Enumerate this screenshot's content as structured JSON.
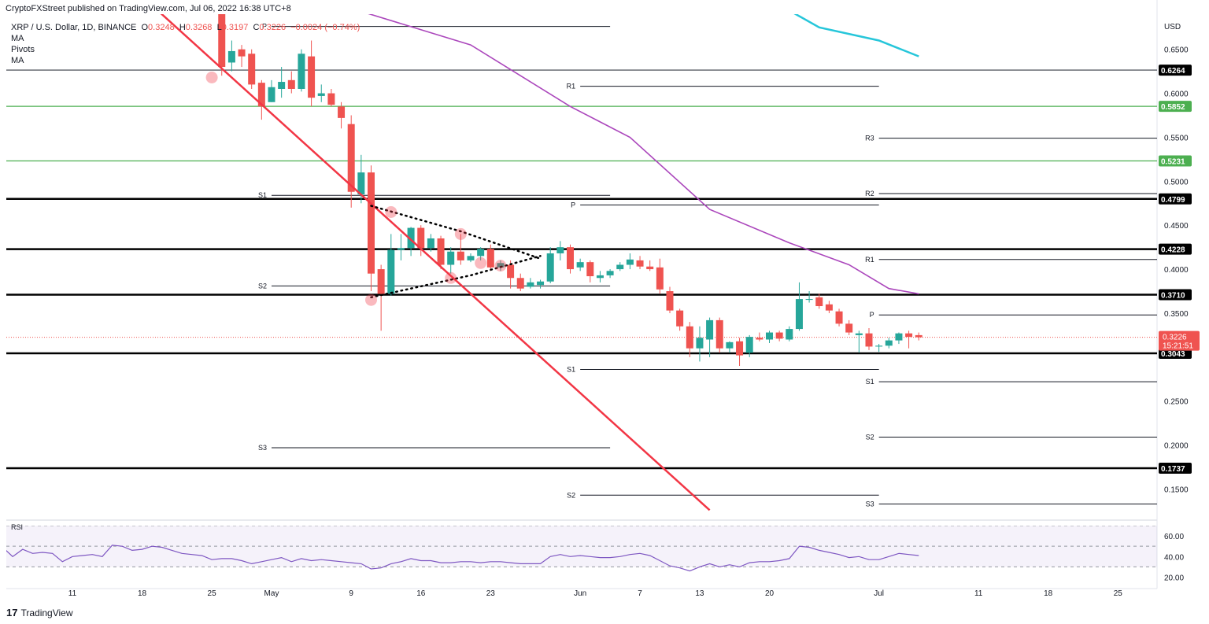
{
  "header": {
    "published": "CryptoFXStreet published on TradingView.com, Jul 06, 2022 16:38 UTC+8",
    "symbol": "XRP / U.S. Dollar, 1D, BINANCE",
    "open_label": "O",
    "open": "0.3248",
    "high_label": "H",
    "high": "0.3268",
    "low_label": "L",
    "low": "0.3197",
    "close_label": "C",
    "close": "0.3226",
    "change": "−0.0024 (−0.74%)",
    "indicators": [
      "MA",
      "Pivots",
      "MA"
    ]
  },
  "footer": {
    "brand": "TradingView"
  },
  "colors": {
    "up": "#26a69a",
    "down": "#ef5350",
    "ma_fast": "#ab47bc",
    "ma_slow": "#26c6da",
    "trendline": "#f23645",
    "support_green": "#4caf50",
    "rsi": "#7e57c2"
  },
  "chart_data": {
    "type": "candlestick",
    "currency": "USD",
    "ylim": [
      0.12,
      0.69
    ],
    "y_ticks": [
      "0.6500",
      "0.6000",
      "0.5500",
      "0.5000",
      "0.4500",
      "0.4000",
      "0.3500",
      "0.2500",
      "0.2000",
      "0.1500"
    ],
    "x_ticks": [
      {
        "label": "11",
        "day": -20
      },
      {
        "label": "18",
        "day": -13
      },
      {
        "label": "25",
        "day": -6
      },
      {
        "label": "May",
        "day": 0
      },
      {
        "label": "9",
        "day": 8
      },
      {
        "label": "16",
        "day": 15
      },
      {
        "label": "23",
        "day": 22
      },
      {
        "label": "Jun",
        "day": 31
      },
      {
        "label": "7",
        "day": 37
      },
      {
        "label": "13",
        "day": 43
      },
      {
        "label": "20",
        "day": 50
      },
      {
        "label": "Jul",
        "day": 61
      },
      {
        "label": "11",
        "day": 71
      },
      {
        "label": "18",
        "day": 78
      },
      {
        "label": "25",
        "day": 85
      }
    ],
    "candles": [
      {
        "d": -5,
        "o": 0.7,
        "h": 0.72,
        "l": 0.62,
        "c": 0.63
      },
      {
        "d": -4,
        "o": 0.635,
        "h": 0.66,
        "l": 0.625,
        "c": 0.648
      },
      {
        "d": -3,
        "o": 0.65,
        "h": 0.655,
        "l": 0.63,
        "c": 0.642
      },
      {
        "d": -2,
        "o": 0.645,
        "h": 0.65,
        "l": 0.605,
        "c": 0.61
      },
      {
        "d": -1,
        "o": 0.612,
        "h": 0.615,
        "l": 0.57,
        "c": 0.585
      },
      {
        "d": 0,
        "o": 0.59,
        "h": 0.615,
        "l": 0.59,
        "c": 0.607
      },
      {
        "d": 1,
        "o": 0.605,
        "h": 0.63,
        "l": 0.595,
        "c": 0.613
      },
      {
        "d": 2,
        "o": 0.615,
        "h": 0.625,
        "l": 0.6,
        "c": 0.605
      },
      {
        "d": 3,
        "o": 0.605,
        "h": 0.65,
        "l": 0.602,
        "c": 0.645
      },
      {
        "d": 4,
        "o": 0.642,
        "h": 0.66,
        "l": 0.585,
        "c": 0.595
      },
      {
        "d": 5,
        "o": 0.597,
        "h": 0.61,
        "l": 0.59,
        "c": 0.6
      },
      {
        "d": 6,
        "o": 0.6,
        "h": 0.605,
        "l": 0.585,
        "c": 0.587
      },
      {
        "d": 7,
        "o": 0.585,
        "h": 0.59,
        "l": 0.56,
        "c": 0.572
      },
      {
        "d": 8,
        "o": 0.565,
        "h": 0.575,
        "l": 0.47,
        "c": 0.488
      },
      {
        "d": 9,
        "o": 0.485,
        "h": 0.53,
        "l": 0.475,
        "c": 0.51
      },
      {
        "d": 10,
        "o": 0.51,
        "h": 0.518,
        "l": 0.375,
        "c": 0.395
      },
      {
        "d": 11,
        "o": 0.4,
        "h": 0.405,
        "l": 0.33,
        "c": 0.372
      },
      {
        "d": 12,
        "o": 0.372,
        "h": 0.44,
        "l": 0.37,
        "c": 0.422
      },
      {
        "d": 13,
        "o": 0.422,
        "h": 0.44,
        "l": 0.41,
        "c": 0.424
      },
      {
        "d": 14,
        "o": 0.424,
        "h": 0.448,
        "l": 0.415,
        "c": 0.447
      },
      {
        "d": 15,
        "o": 0.447,
        "h": 0.45,
        "l": 0.415,
        "c": 0.424
      },
      {
        "d": 16,
        "o": 0.424,
        "h": 0.44,
        "l": 0.42,
        "c": 0.435
      },
      {
        "d": 17,
        "o": 0.435,
        "h": 0.438,
        "l": 0.4,
        "c": 0.405
      },
      {
        "d": 18,
        "o": 0.405,
        "h": 0.425,
        "l": 0.395,
        "c": 0.42
      },
      {
        "d": 19,
        "o": 0.42,
        "h": 0.44,
        "l": 0.405,
        "c": 0.41
      },
      {
        "d": 20,
        "o": 0.41,
        "h": 0.418,
        "l": 0.408,
        "c": 0.415
      },
      {
        "d": 21,
        "o": 0.415,
        "h": 0.425,
        "l": 0.41,
        "c": 0.423
      },
      {
        "d": 22,
        "o": 0.423,
        "h": 0.428,
        "l": 0.398,
        "c": 0.402
      },
      {
        "d": 23,
        "o": 0.402,
        "h": 0.41,
        "l": 0.398,
        "c": 0.407
      },
      {
        "d": 24,
        "o": 0.405,
        "h": 0.41,
        "l": 0.378,
        "c": 0.39
      },
      {
        "d": 25,
        "o": 0.39,
        "h": 0.395,
        "l": 0.375,
        "c": 0.378
      },
      {
        "d": 26,
        "o": 0.38,
        "h": 0.39,
        "l": 0.378,
        "c": 0.385
      },
      {
        "d": 27,
        "o": 0.382,
        "h": 0.388,
        "l": 0.378,
        "c": 0.386
      },
      {
        "d": 28,
        "o": 0.386,
        "h": 0.425,
        "l": 0.384,
        "c": 0.418
      },
      {
        "d": 29,
        "o": 0.418,
        "h": 0.432,
        "l": 0.41,
        "c": 0.425
      },
      {
        "d": 30,
        "o": 0.425,
        "h": 0.428,
        "l": 0.395,
        "c": 0.4
      },
      {
        "d": 31,
        "o": 0.402,
        "h": 0.412,
        "l": 0.398,
        "c": 0.408
      },
      {
        "d": 32,
        "o": 0.408,
        "h": 0.41,
        "l": 0.385,
        "c": 0.392
      },
      {
        "d": 33,
        "o": 0.39,
        "h": 0.398,
        "l": 0.385,
        "c": 0.393
      },
      {
        "d": 34,
        "o": 0.393,
        "h": 0.4,
        "l": 0.39,
        "c": 0.398
      },
      {
        "d": 35,
        "o": 0.4,
        "h": 0.408,
        "l": 0.398,
        "c": 0.405
      },
      {
        "d": 36,
        "o": 0.405,
        "h": 0.418,
        "l": 0.4,
        "c": 0.411
      },
      {
        "d": 37,
        "o": 0.41,
        "h": 0.415,
        "l": 0.4,
        "c": 0.403
      },
      {
        "d": 38,
        "o": 0.403,
        "h": 0.41,
        "l": 0.398,
        "c": 0.4
      },
      {
        "d": 39,
        "o": 0.402,
        "h": 0.412,
        "l": 0.372,
        "c": 0.377
      },
      {
        "d": 40,
        "o": 0.375,
        "h": 0.38,
        "l": 0.35,
        "c": 0.353
      },
      {
        "d": 41,
        "o": 0.353,
        "h": 0.355,
        "l": 0.33,
        "c": 0.335
      },
      {
        "d": 42,
        "o": 0.335,
        "h": 0.34,
        "l": 0.3,
        "c": 0.31
      },
      {
        "d": 43,
        "o": 0.31,
        "h": 0.335,
        "l": 0.295,
        "c": 0.322
      },
      {
        "d": 44,
        "o": 0.32,
        "h": 0.345,
        "l": 0.3,
        "c": 0.342
      },
      {
        "d": 45,
        "o": 0.342,
        "h": 0.345,
        "l": 0.305,
        "c": 0.31
      },
      {
        "d": 46,
        "o": 0.31,
        "h": 0.318,
        "l": 0.305,
        "c": 0.317
      },
      {
        "d": 47,
        "o": 0.318,
        "h": 0.322,
        "l": 0.29,
        "c": 0.302
      },
      {
        "d": 48,
        "o": 0.305,
        "h": 0.325,
        "l": 0.3,
        "c": 0.323
      },
      {
        "d": 49,
        "o": 0.322,
        "h": 0.328,
        "l": 0.318,
        "c": 0.32
      },
      {
        "d": 50,
        "o": 0.32,
        "h": 0.33,
        "l": 0.316,
        "c": 0.328
      },
      {
        "d": 51,
        "o": 0.328,
        "h": 0.33,
        "l": 0.318,
        "c": 0.321
      },
      {
        "d": 52,
        "o": 0.32,
        "h": 0.335,
        "l": 0.318,
        "c": 0.332
      },
      {
        "d": 53,
        "o": 0.332,
        "h": 0.385,
        "l": 0.33,
        "c": 0.366
      },
      {
        "d": 54,
        "o": 0.366,
        "h": 0.375,
        "l": 0.362,
        "c": 0.366
      },
      {
        "d": 55,
        "o": 0.368,
        "h": 0.372,
        "l": 0.355,
        "c": 0.358
      },
      {
        "d": 56,
        "o": 0.36,
        "h": 0.364,
        "l": 0.35,
        "c": 0.353
      },
      {
        "d": 57,
        "o": 0.352,
        "h": 0.355,
        "l": 0.335,
        "c": 0.338
      },
      {
        "d": 58,
        "o": 0.338,
        "h": 0.342,
        "l": 0.325,
        "c": 0.328
      },
      {
        "d": 59,
        "o": 0.325,
        "h": 0.33,
        "l": 0.305,
        "c": 0.327
      },
      {
        "d": 60,
        "o": 0.327,
        "h": 0.333,
        "l": 0.308,
        "c": 0.312
      },
      {
        "d": 61,
        "o": 0.312,
        "h": 0.315,
        "l": 0.306,
        "c": 0.313
      },
      {
        "d": 62,
        "o": 0.313,
        "h": 0.322,
        "l": 0.31,
        "c": 0.319
      },
      {
        "d": 63,
        "o": 0.319,
        "h": 0.328,
        "l": 0.315,
        "c": 0.327
      },
      {
        "d": 64,
        "o": 0.327,
        "h": 0.33,
        "l": 0.31,
        "c": 0.323
      },
      {
        "d": 65,
        "o": 0.325,
        "h": 0.328,
        "l": 0.319,
        "c": 0.3226
      }
    ],
    "horizontal_levels": [
      {
        "label": "0.6264",
        "value": 0.6264,
        "color": "#363a45"
      },
      {
        "label": "0.5852",
        "value": 0.5852,
        "color": "#4caf50"
      },
      {
        "label": "0.5231",
        "value": 0.5231,
        "color": "#4caf50"
      },
      {
        "label": "0.4799",
        "value": 0.4799,
        "color": "#000000"
      },
      {
        "label": "0.4228",
        "value": 0.4228,
        "color": "#000000"
      },
      {
        "label": "0.3710",
        "value": 0.371,
        "color": "#000000"
      },
      {
        "label": "0.3043",
        "value": 0.3043,
        "color": "#000000"
      },
      {
        "label": "0.1737",
        "value": 0.1737,
        "color": "#000000"
      }
    ],
    "current_price": {
      "label": "0.3226",
      "countdown": "15:21:51",
      "value": 0.3226
    },
    "pivots": [
      {
        "label": "P",
        "value": 0.676,
        "d0": 0,
        "d1": 34
      },
      {
        "label": "S1",
        "value": 0.484,
        "d0": 0,
        "d1": 34
      },
      {
        "label": "S2",
        "value": 0.381,
        "d0": 0,
        "d1": 34
      },
      {
        "label": "S3",
        "value": 0.197,
        "d0": 0,
        "d1": 34
      },
      {
        "label": "R1",
        "value": 0.608,
        "d0": 31,
        "d1": 61
      },
      {
        "label": "P",
        "value": 0.473,
        "d0": 31,
        "d1": 61
      },
      {
        "label": "S1",
        "value": 0.286,
        "d0": 31,
        "d1": 61
      },
      {
        "label": "S2",
        "value": 0.143,
        "d0": 31,
        "d1": 61
      },
      {
        "label": "R3",
        "value": 0.549,
        "d0": 61,
        "d1": 92
      },
      {
        "label": "R2",
        "value": 0.486,
        "d0": 61,
        "d1": 92
      },
      {
        "label": "R1",
        "value": 0.411,
        "d0": 61,
        "d1": 92
      },
      {
        "label": "P",
        "value": 0.348,
        "d0": 61,
        "d1": 92
      },
      {
        "label": "S1",
        "value": 0.272,
        "d0": 61,
        "d1": 92
      },
      {
        "label": "S2",
        "value": 0.209,
        "d0": 61,
        "d1": 92
      },
      {
        "label": "S3",
        "value": 0.133,
        "d0": 61,
        "d1": 92
      }
    ],
    "ma_slow": [
      [
        -20,
        0.95
      ],
      [
        -10,
        0.9
      ],
      [
        10,
        0.84
      ],
      [
        30,
        0.78
      ],
      [
        44,
        0.745
      ],
      [
        55,
        0.675
      ],
      [
        61,
        0.66
      ],
      [
        65,
        0.642
      ]
    ],
    "ma_fast": [
      [
        7,
        0.7
      ],
      [
        20,
        0.655
      ],
      [
        30,
        0.585
      ],
      [
        36,
        0.55
      ],
      [
        44,
        0.468
      ],
      [
        52,
        0.43
      ],
      [
        58,
        0.405
      ],
      [
        62,
        0.378
      ],
      [
        65,
        0.372
      ]
    ],
    "trendline": [
      [
        -12,
        0.7
      ],
      [
        44,
        0.126
      ]
    ],
    "triangle_upper": [
      [
        10,
        0.472
      ],
      [
        19,
        0.443
      ],
      [
        27,
        0.412
      ]
    ],
    "triangle_lower": [
      [
        10,
        0.368
      ],
      [
        20,
        0.393
      ],
      [
        27,
        0.415
      ]
    ],
    "touch_points": [
      [
        -6,
        0.618
      ],
      [
        10,
        0.365
      ],
      [
        12,
        0.465
      ],
      [
        19,
        0.44
      ],
      [
        18,
        0.39
      ],
      [
        21,
        0.407
      ],
      [
        23,
        0.404
      ]
    ],
    "rsi": {
      "label": "RSI",
      "ticks": [
        "60.00",
        "40.00",
        "20.00"
      ],
      "ylim": [
        15,
        70
      ],
      "bands": [
        70,
        50,
        30
      ],
      "values": [
        [
          -28,
          52
        ],
        [
          -27,
          49
        ],
        [
          -26,
          40
        ],
        [
          -25,
          47
        ],
        [
          -24,
          43
        ],
        [
          -23,
          44
        ],
        [
          -22,
          43
        ],
        [
          -21,
          35
        ],
        [
          -20,
          40
        ],
        [
          -19,
          41
        ],
        [
          -18,
          42
        ],
        [
          -17,
          40
        ],
        [
          -16,
          51
        ],
        [
          -15,
          50
        ],
        [
          -14,
          46
        ],
        [
          -13,
          47
        ],
        [
          -12,
          50
        ],
        [
          -11,
          49
        ],
        [
          -10,
          46
        ],
        [
          -9,
          43
        ],
        [
          -8,
          42
        ],
        [
          -7,
          41
        ],
        [
          -6,
          37
        ],
        [
          -5,
          38
        ],
        [
          -4,
          38
        ],
        [
          -3,
          36
        ],
        [
          -2,
          33
        ],
        [
          -1,
          35
        ],
        [
          0,
          37
        ],
        [
          1,
          39
        ],
        [
          2,
          35
        ],
        [
          3,
          38
        ],
        [
          4,
          36
        ],
        [
          5,
          37
        ],
        [
          6,
          36
        ],
        [
          7,
          35
        ],
        [
          8,
          34
        ],
        [
          9,
          33
        ],
        [
          10,
          28
        ],
        [
          11,
          29
        ],
        [
          12,
          33
        ],
        [
          13,
          35
        ],
        [
          14,
          38
        ],
        [
          15,
          36
        ],
        [
          16,
          36
        ],
        [
          17,
          34
        ],
        [
          18,
          34
        ],
        [
          19,
          35
        ],
        [
          20,
          35
        ],
        [
          21,
          34
        ],
        [
          22,
          35
        ],
        [
          23,
          35
        ],
        [
          24,
          34
        ],
        [
          25,
          33
        ],
        [
          26,
          33
        ],
        [
          27,
          33
        ],
        [
          28,
          40
        ],
        [
          29,
          42
        ],
        [
          30,
          40
        ],
        [
          31,
          41
        ],
        [
          32,
          40
        ],
        [
          33,
          39
        ],
        [
          34,
          39
        ],
        [
          35,
          40
        ],
        [
          36,
          42
        ],
        [
          37,
          43
        ],
        [
          38,
          41
        ],
        [
          39,
          36
        ],
        [
          40,
          31
        ],
        [
          41,
          29
        ],
        [
          42,
          26
        ],
        [
          43,
          30
        ],
        [
          44,
          33
        ],
        [
          45,
          30
        ],
        [
          46,
          32
        ],
        [
          47,
          30
        ],
        [
          48,
          34
        ],
        [
          49,
          35
        ],
        [
          50,
          35
        ],
        [
          51,
          36
        ],
        [
          52,
          38
        ],
        [
          53,
          50
        ],
        [
          54,
          49
        ],
        [
          55,
          46
        ],
        [
          56,
          44
        ],
        [
          57,
          42
        ],
        [
          58,
          39
        ],
        [
          59,
          40
        ],
        [
          60,
          37
        ],
        [
          61,
          37
        ],
        [
          62,
          40
        ],
        [
          63,
          43
        ],
        [
          64,
          42
        ],
        [
          65,
          41
        ]
      ]
    }
  }
}
